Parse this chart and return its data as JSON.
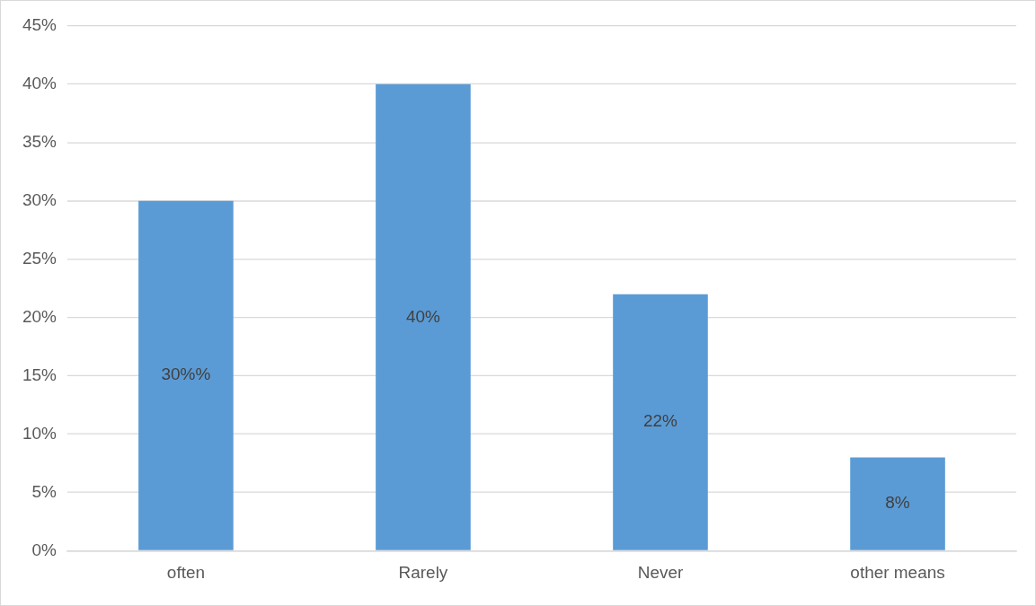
{
  "chart_data": {
    "type": "bar",
    "categories": [
      "often",
      "Rarely",
      "Never",
      "other means"
    ],
    "values": [
      30,
      40,
      22,
      8
    ],
    "color": "#5b9bd5",
    "value_labels": [
      "30%%",
      "40%",
      "22%",
      "8%"
    ],
    "ylim": [
      0,
      45
    ],
    "yticks": [
      {
        "value": 0,
        "label": "0%"
      },
      {
        "value": 5,
        "label": "5%"
      },
      {
        "value": 10,
        "label": "10%"
      },
      {
        "value": 15,
        "label": "15%"
      },
      {
        "value": 20,
        "label": "20%"
      },
      {
        "value": 25,
        "label": "25%"
      },
      {
        "value": 30,
        "label": "30%"
      },
      {
        "value": 35,
        "label": "35%"
      },
      {
        "value": 40,
        "label": "40%"
      },
      {
        "value": 45,
        "label": "45%"
      }
    ],
    "grid": "y",
    "legend": false
  }
}
